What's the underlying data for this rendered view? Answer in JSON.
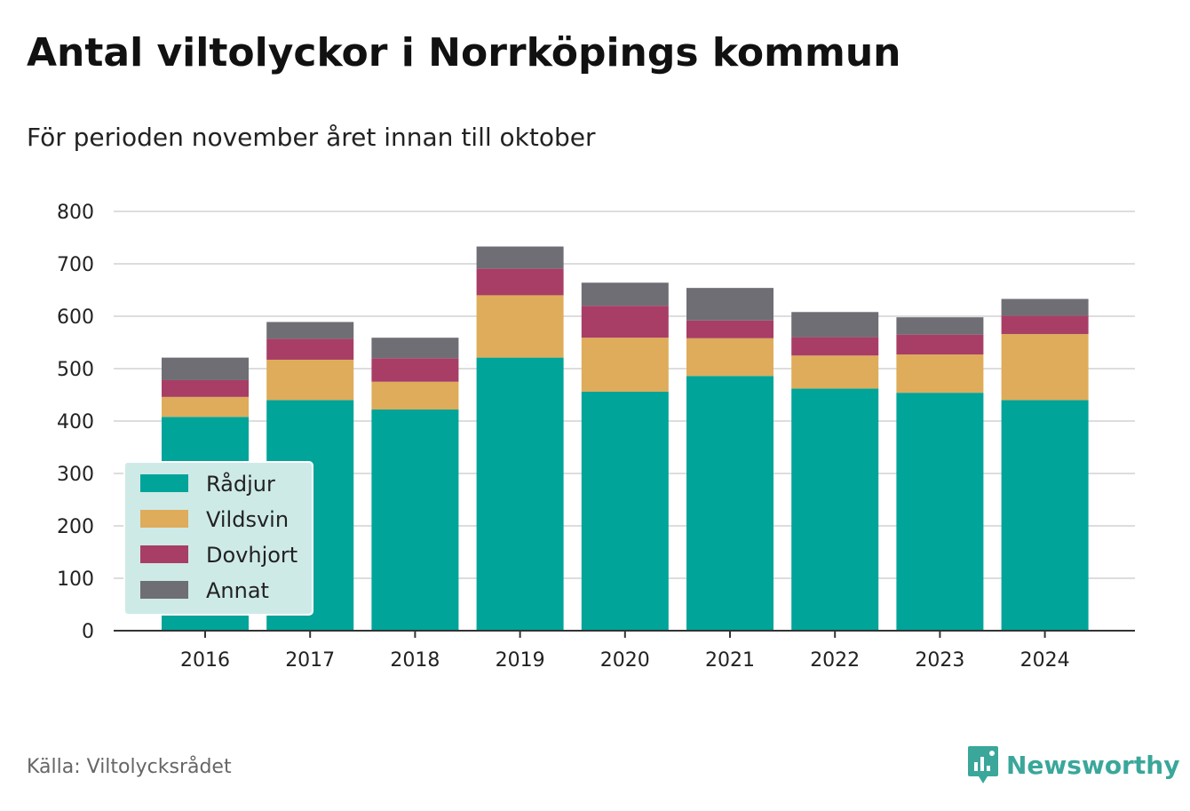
{
  "title": "Antal viltolyckor i Norrköpings kommun",
  "subtitle": "För perioden november året innan till oktober",
  "source": "Källa: Viltolycksrådet",
  "brand": "Newsworthy",
  "colors": {
    "Rådjur": "#00a499",
    "Vildsvin": "#deac5a",
    "Dovhjort": "#a83e65",
    "Annat": "#6f6e75",
    "brand": "#3aa79a",
    "legend_bg": "#cdeae7"
  },
  "chart_data": {
    "type": "bar",
    "stacked": true,
    "categories": [
      "2016",
      "2017",
      "2018",
      "2019",
      "2020",
      "2021",
      "2022",
      "2023",
      "2024"
    ],
    "series": [
      {
        "name": "Rådjur",
        "values": [
          408,
          440,
          422,
          521,
          456,
          486,
          462,
          454,
          440
        ]
      },
      {
        "name": "Vildsvin",
        "values": [
          38,
          77,
          53,
          119,
          103,
          72,
          63,
          73,
          126
        ]
      },
      {
        "name": "Dovhjort",
        "values": [
          32,
          40,
          45,
          51,
          61,
          34,
          35,
          38,
          35
        ]
      },
      {
        "name": "Annat",
        "values": [
          43,
          32,
          39,
          42,
          44,
          62,
          48,
          33,
          32
        ]
      }
    ],
    "ylim": [
      0,
      800
    ],
    "yticks": [
      0,
      100,
      200,
      300,
      400,
      500,
      600,
      700,
      800
    ],
    "grid": true,
    "legend_position": "bottom-left",
    "xlabel": "",
    "ylabel": ""
  }
}
